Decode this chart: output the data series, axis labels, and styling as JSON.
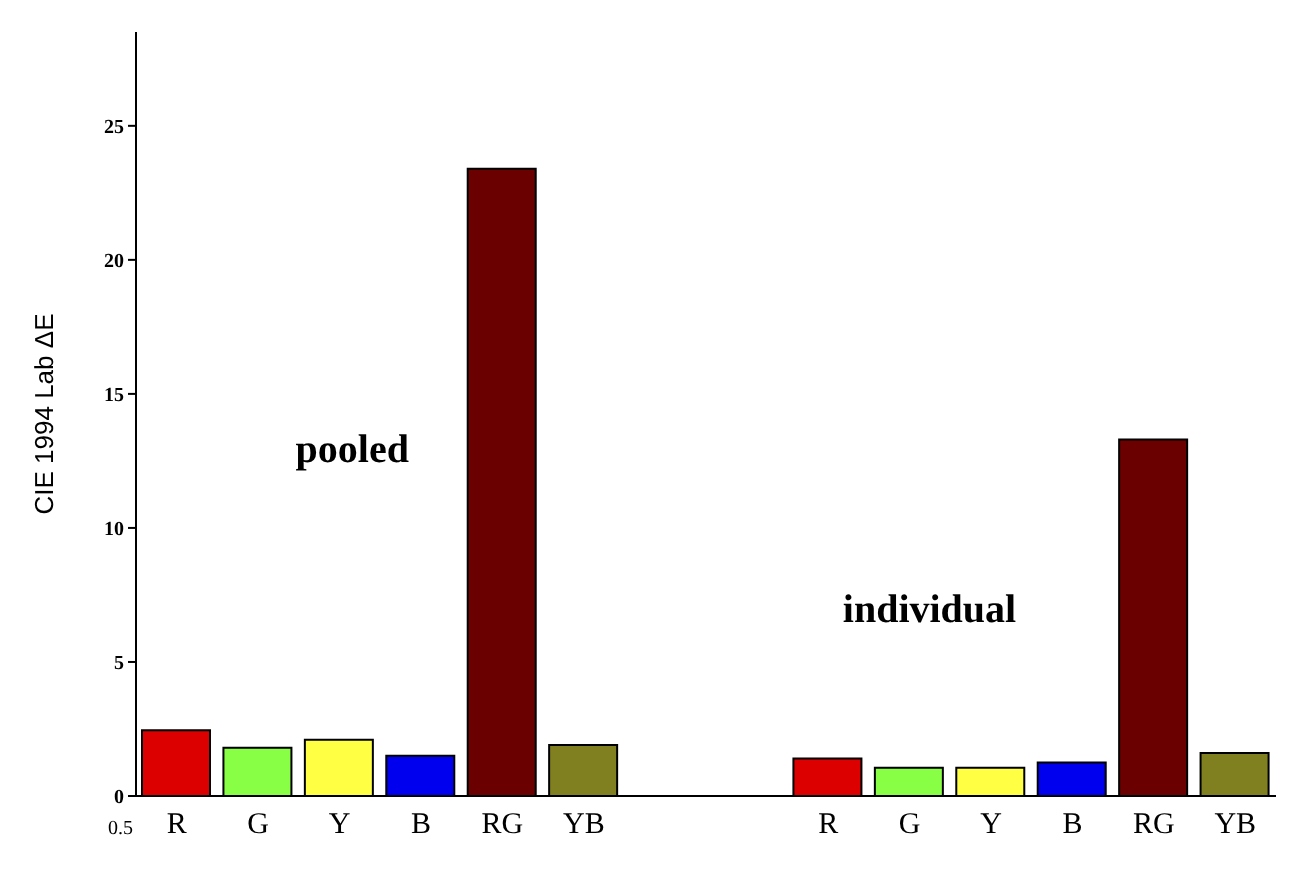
{
  "chart_data": {
    "type": "bar",
    "ylabel": "CIE 1994  Lab ΔE",
    "categories": [
      "R",
      "G",
      "Y",
      "B",
      "RG",
      "YB",
      null,
      null,
      "R",
      "G",
      "Y",
      "B",
      "RG",
      "YB"
    ],
    "values": [
      2.45,
      1.8,
      2.1,
      1.5,
      23.4,
      1.9,
      null,
      null,
      1.4,
      1.05,
      1.05,
      1.25,
      13.3,
      1.6
    ],
    "colors": [
      "#dd0000",
      "#88ff44",
      "#ffff44",
      "#0000ee",
      "#6b0000",
      "#808020",
      null,
      null,
      "#dd0000",
      "#88ff44",
      "#ffff44",
      "#0000ee",
      "#6b0000",
      "#808020"
    ],
    "ylim": [
      0,
      28.5
    ],
    "yticks": [
      0,
      5,
      10,
      15,
      20,
      25
    ],
    "annotations": [
      "pooled",
      "individual",
      "0.5"
    ],
    "grid": false,
    "legend": false
  }
}
